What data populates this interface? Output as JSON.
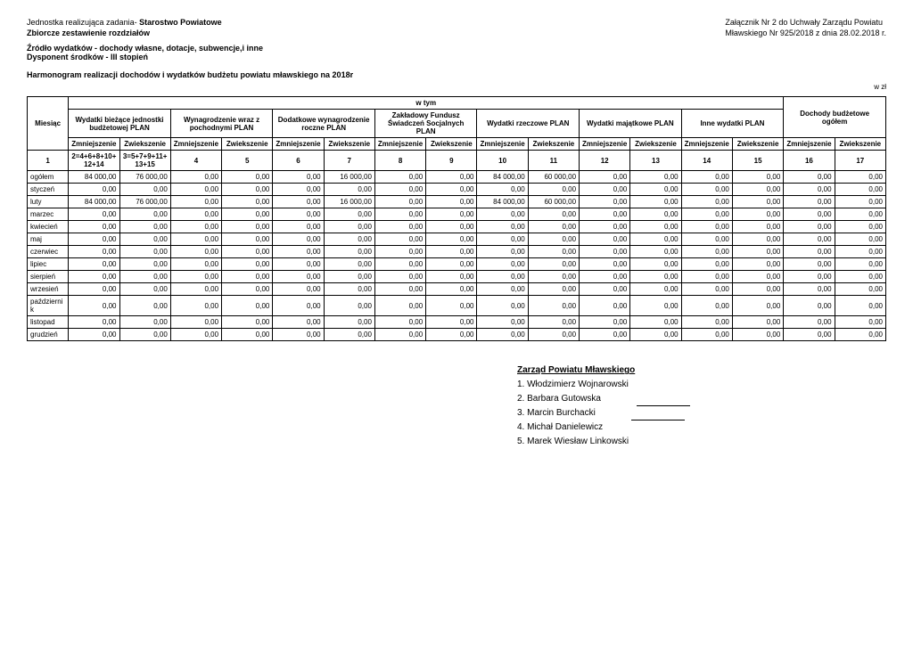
{
  "header": {
    "left_line1_prefix": "Jednostka realizująca zadania- ",
    "left_line1_bold": "Starostwo Powiatowe",
    "left_line2": "Zbiorcze zestawienie rozdziałów",
    "right_line1": "Załącznik Nr 2 do Uchwały Zarządu Powiatu",
    "right_line2": "Mławskiego Nr 925/2018 z dnia 28.02.2018 r.",
    "source_line1": "Źródło wydatków - dochody własne, dotacje, subwencje,i inne",
    "source_line2": "Dysponent środków - III stopień",
    "schedule_title": "Harmonogram realizacji dochodów i wydatków budżetu powiatu mławskiego na 2018r",
    "w_zl": "w zł"
  },
  "table": {
    "top_span": "w tym",
    "group_headers": [
      "Wydatki bieżące jednostki budżetowej PLAN",
      "Wynagrodzenie wraz z pochodnymi PLAN",
      "Dodatkowe wynagrodzenie roczne PLAN",
      "Zakładowy Fundusz Świadczeń Socjalnych PLAN",
      "Wydatki rzeczowe PLAN",
      "Wydatki majątkowe PLAN",
      "Inne wydatki PLAN",
      "Dochody budżetowe ogółem"
    ],
    "miesiac": "Miesiąc",
    "sub_zm": "Zmniejszenie",
    "sub_zw": "Zwiekszenie",
    "formula_row": [
      "1",
      "2=4+6+8+10+12+14",
      "3=5+7+9+11+13+15",
      "4",
      "5",
      "6",
      "7",
      "8",
      "9",
      "10",
      "11",
      "12",
      "13",
      "14",
      "15",
      "16",
      "17"
    ],
    "rows": [
      {
        "label": "ogółem",
        "vals": [
          "84 000,00",
          "76 000,00",
          "0,00",
          "0,00",
          "0,00",
          "16 000,00",
          "0,00",
          "0,00",
          "84 000,00",
          "60 000,00",
          "0,00",
          "0,00",
          "0,00",
          "0,00",
          "0,00",
          "0,00"
        ]
      },
      {
        "label": "styczeń",
        "vals": [
          "0,00",
          "0,00",
          "0,00",
          "0,00",
          "0,00",
          "0,00",
          "0,00",
          "0,00",
          "0,00",
          "0,00",
          "0,00",
          "0,00",
          "0,00",
          "0,00",
          "0,00",
          "0,00"
        ]
      },
      {
        "label": "luty",
        "vals": [
          "84 000,00",
          "76 000,00",
          "0,00",
          "0,00",
          "0,00",
          "16 000,00",
          "0,00",
          "0,00",
          "84 000,00",
          "60 000,00",
          "0,00",
          "0,00",
          "0,00",
          "0,00",
          "0,00",
          "0,00"
        ]
      },
      {
        "label": "marzec",
        "vals": [
          "0,00",
          "0,00",
          "0,00",
          "0,00",
          "0,00",
          "0,00",
          "0,00",
          "0,00",
          "0,00",
          "0,00",
          "0,00",
          "0,00",
          "0,00",
          "0,00",
          "0,00",
          "0,00"
        ]
      },
      {
        "label": "kwiecień",
        "vals": [
          "0,00",
          "0,00",
          "0,00",
          "0,00",
          "0,00",
          "0,00",
          "0,00",
          "0,00",
          "0,00",
          "0,00",
          "0,00",
          "0,00",
          "0,00",
          "0,00",
          "0,00",
          "0,00"
        ]
      },
      {
        "label": "maj",
        "vals": [
          "0,00",
          "0,00",
          "0,00",
          "0,00",
          "0,00",
          "0,00",
          "0,00",
          "0,00",
          "0,00",
          "0,00",
          "0,00",
          "0,00",
          "0,00",
          "0,00",
          "0,00",
          "0,00"
        ]
      },
      {
        "label": "czerwiec",
        "vals": [
          "0,00",
          "0,00",
          "0,00",
          "0,00",
          "0,00",
          "0,00",
          "0,00",
          "0,00",
          "0,00",
          "0,00",
          "0,00",
          "0,00",
          "0,00",
          "0,00",
          "0,00",
          "0,00"
        ]
      },
      {
        "label": "lipiec",
        "vals": [
          "0,00",
          "0,00",
          "0,00",
          "0,00",
          "0,00",
          "0,00",
          "0,00",
          "0,00",
          "0,00",
          "0,00",
          "0,00",
          "0,00",
          "0,00",
          "0,00",
          "0,00",
          "0,00"
        ]
      },
      {
        "label": "sierpień",
        "vals": [
          "0,00",
          "0,00",
          "0,00",
          "0,00",
          "0,00",
          "0,00",
          "0,00",
          "0,00",
          "0,00",
          "0,00",
          "0,00",
          "0,00",
          "0,00",
          "0,00",
          "0,00",
          "0,00"
        ]
      },
      {
        "label": "wrzesień",
        "vals": [
          "0,00",
          "0,00",
          "0,00",
          "0,00",
          "0,00",
          "0,00",
          "0,00",
          "0,00",
          "0,00",
          "0,00",
          "0,00",
          "0,00",
          "0,00",
          "0,00",
          "0,00",
          "0,00"
        ]
      },
      {
        "label": "październik",
        "vals": [
          "0,00",
          "0,00",
          "0,00",
          "0,00",
          "0,00",
          "0,00",
          "0,00",
          "0,00",
          "0,00",
          "0,00",
          "0,00",
          "0,00",
          "0,00",
          "0,00",
          "0,00",
          "0,00"
        ]
      },
      {
        "label": "listopad",
        "vals": [
          "0,00",
          "0,00",
          "0,00",
          "0,00",
          "0,00",
          "0,00",
          "0,00",
          "0,00",
          "0,00",
          "0,00",
          "0,00",
          "0,00",
          "0,00",
          "0,00",
          "0,00",
          "0,00"
        ]
      },
      {
        "label": "grudzień",
        "vals": [
          "0,00",
          "0,00",
          "0,00",
          "0,00",
          "0,00",
          "0,00",
          "0,00",
          "0,00",
          "0,00",
          "0,00",
          "0,00",
          "0,00",
          "0,00",
          "0,00",
          "0,00",
          "0,00"
        ]
      }
    ]
  },
  "signatures": {
    "title": "Zarząd Powiatu Mławskiego",
    "names": [
      "1. Włodzimierz Wojnarowski",
      "2. Barbara Gutowska",
      "3. Marcin Burchacki",
      "4. Michał Danielewicz",
      "5. Marek Wiesław Linkowski"
    ]
  }
}
